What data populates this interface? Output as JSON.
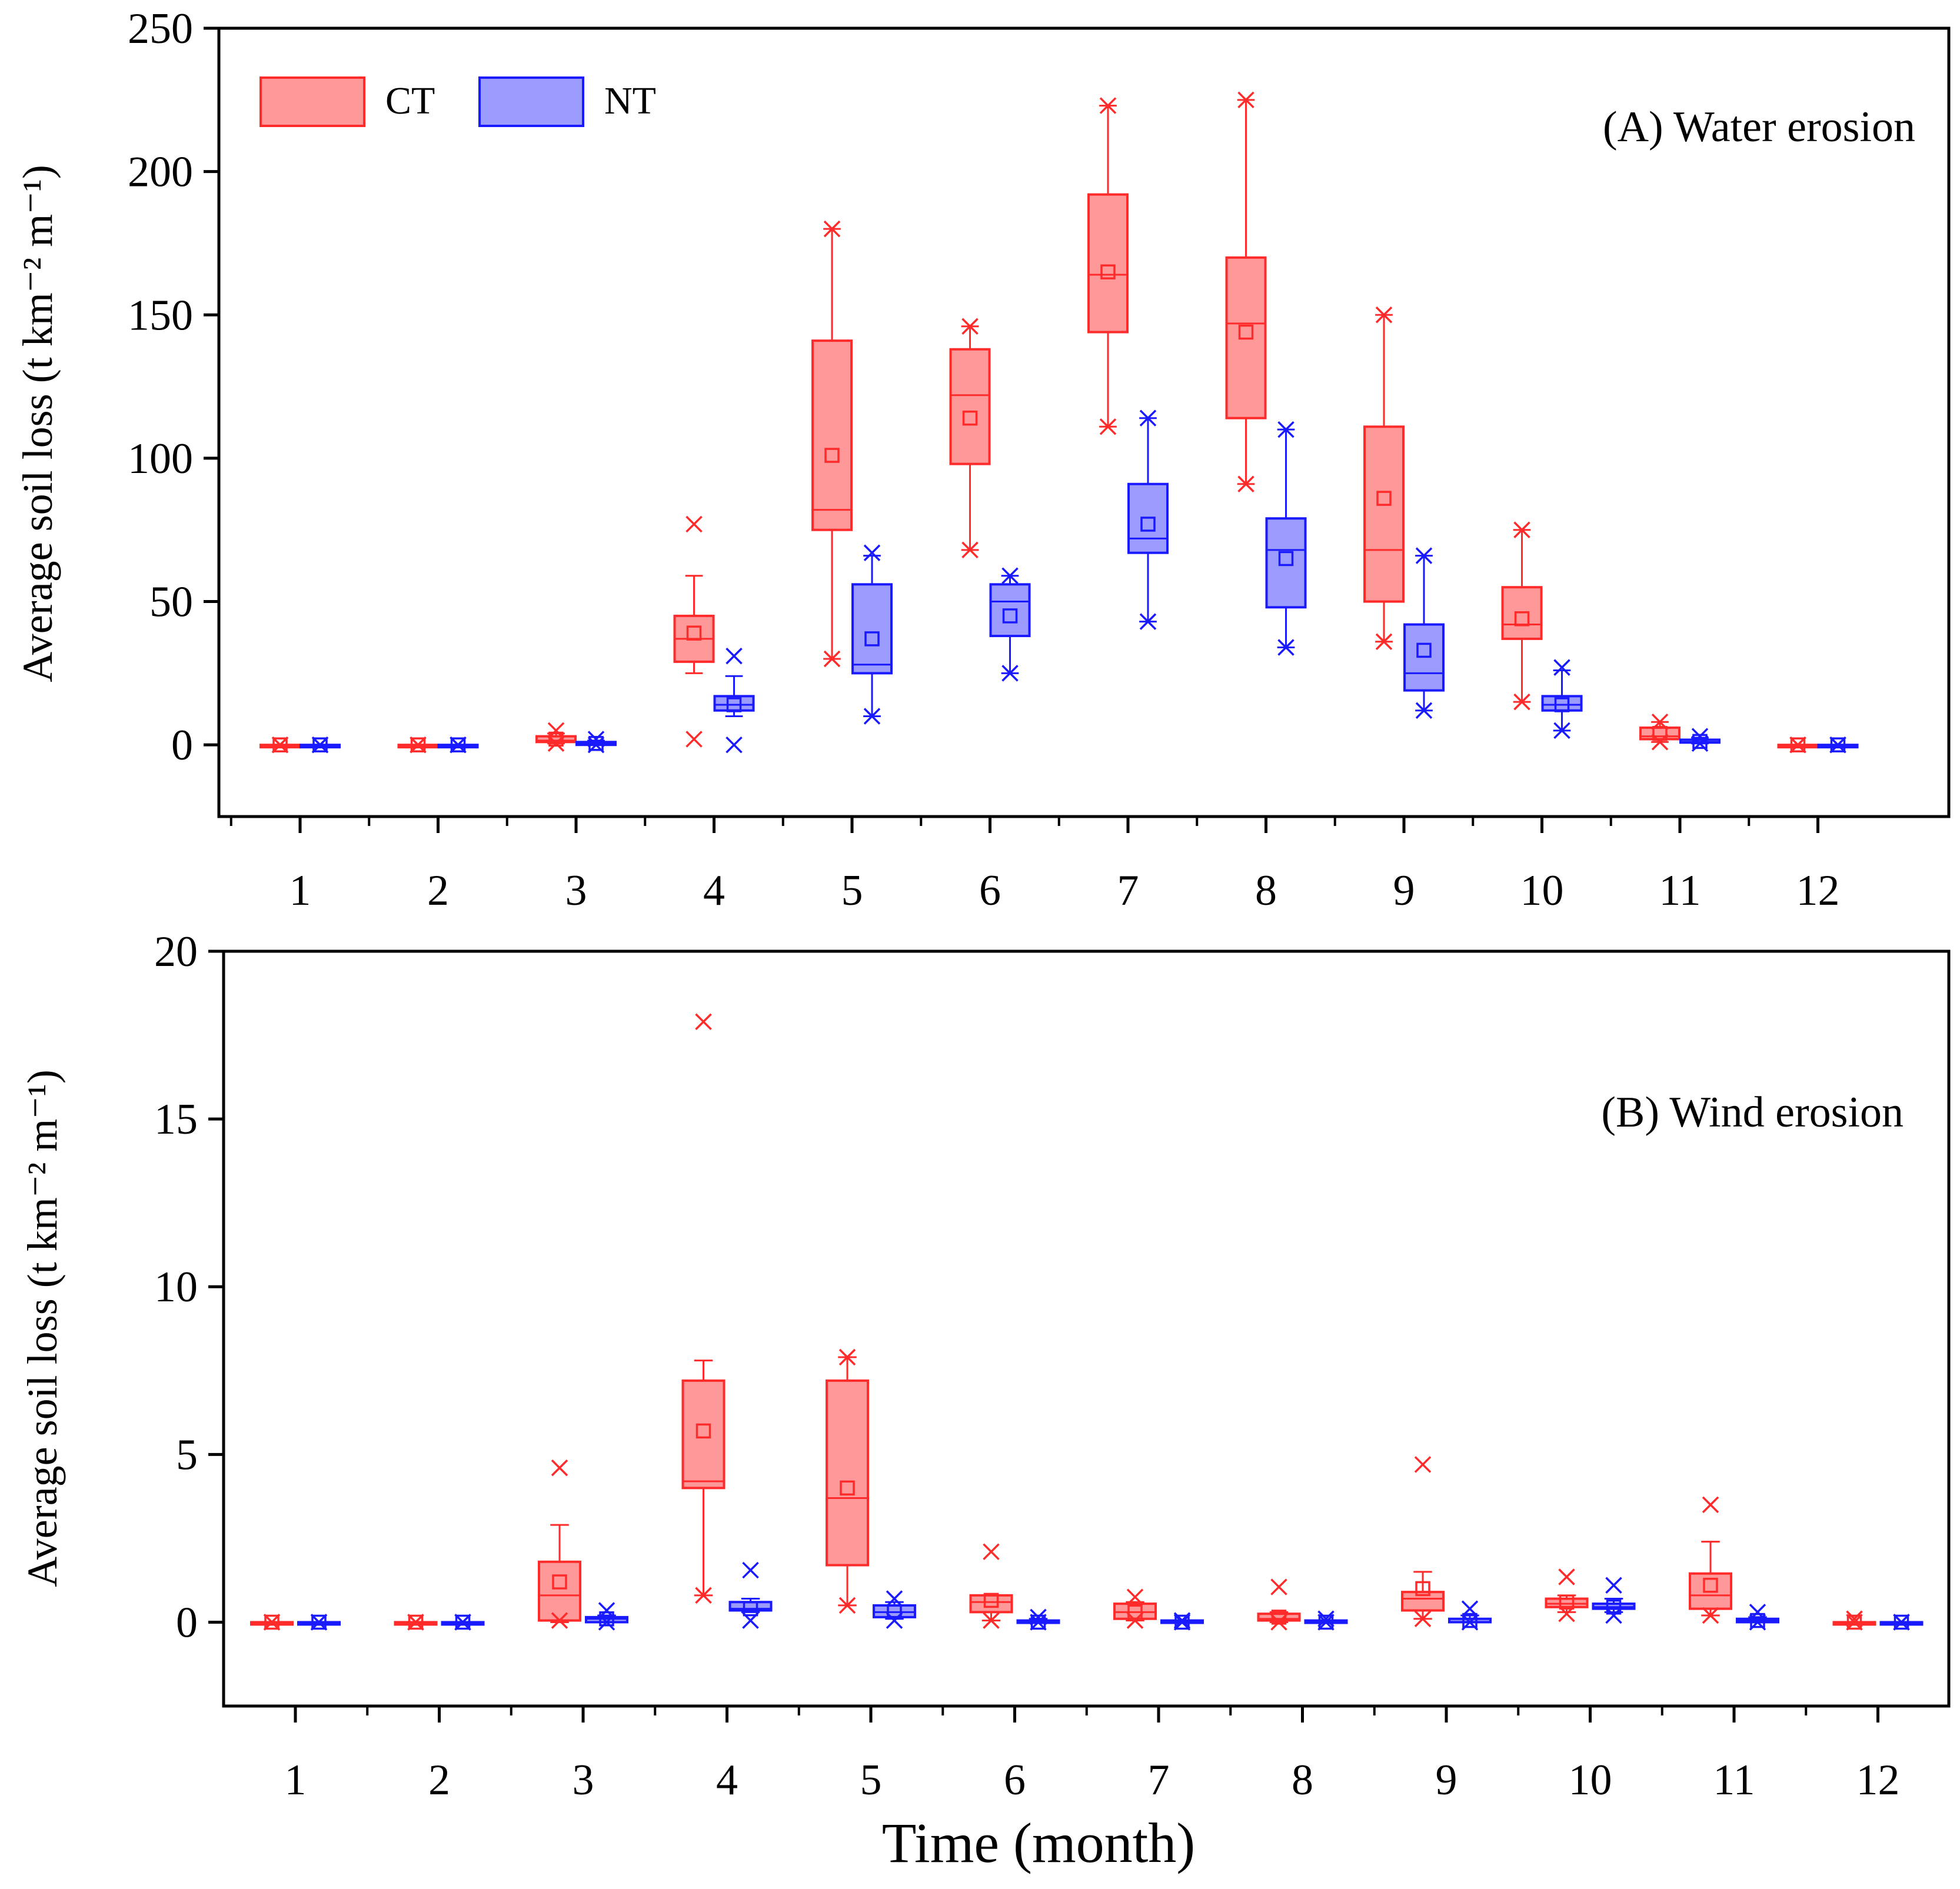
{
  "colors": {
    "CT_stroke": "#ff2a2a",
    "CT_fill": "#ff9999",
    "NT_stroke": "#1a1aff",
    "NT_fill": "#9c9cff",
    "axis": "#000000"
  },
  "xlabel": "Time (month)",
  "chart_data": [
    {
      "type": "box",
      "panel_label": "(A) Water erosion",
      "ylabel": "Average soil loss (t km⁻² m⁻¹)",
      "ylim": [
        -25,
        250
      ],
      "yticks": [
        0,
        50,
        100,
        150,
        200,
        250
      ],
      "categories": [
        "1",
        "2",
        "3",
        "4",
        "5",
        "6",
        "7",
        "8",
        "9",
        "10",
        "11",
        "12"
      ],
      "legend": {
        "placement": "top-left",
        "entries": [
          "CT",
          "NT"
        ]
      },
      "series": [
        {
          "name": "CT",
          "boxes": [
            {
              "min": 0,
              "q1": 0,
              "median": 0,
              "q3": 0,
              "max": 0,
              "mean": 0,
              "outliers": [
                0,
                0
              ]
            },
            {
              "min": 0,
              "q1": 0,
              "median": 0,
              "q3": 0,
              "max": 0,
              "mean": 0,
              "outliers": [
                0,
                0
              ]
            },
            {
              "min": 0.5,
              "q1": 1,
              "median": 1.5,
              "q3": 3,
              "max": 4,
              "mean": 2,
              "outliers": [
                0.5,
                5
              ]
            },
            {
              "min": 25,
              "q1": 29,
              "median": 37,
              "q3": 45,
              "max": 59,
              "mean": 39,
              "outliers": [
                2,
                77
              ]
            },
            {
              "min": 30,
              "q1": 75,
              "median": 82,
              "q3": 141,
              "max": 180,
              "mean": 101,
              "outliers": [
                30,
                180
              ]
            },
            {
              "min": 68,
              "q1": 98,
              "median": 122,
              "q3": 138,
              "max": 146,
              "mean": 114,
              "outliers": [
                68,
                146
              ]
            },
            {
              "min": 111,
              "q1": 144,
              "median": 164,
              "q3": 192,
              "max": 223,
              "mean": 165,
              "outliers": [
                111,
                223
              ]
            },
            {
              "min": 91,
              "q1": 114,
              "median": 147,
              "q3": 170,
              "max": 225,
              "mean": 144,
              "outliers": [
                91,
                225
              ]
            },
            {
              "min": 36,
              "q1": 50,
              "median": 68,
              "q3": 111,
              "max": 150,
              "mean": 86,
              "outliers": [
                36,
                150
              ]
            },
            {
              "min": 15,
              "q1": 37,
              "median": 42,
              "q3": 55,
              "max": 75,
              "mean": 44,
              "outliers": [
                15,
                75
              ]
            },
            {
              "min": 1,
              "q1": 2,
              "median": 3,
              "q3": 6,
              "max": 8,
              "mean": 4,
              "outliers": [
                1,
                8
              ]
            },
            {
              "min": 0,
              "q1": 0,
              "median": 0,
              "q3": 0,
              "max": 0,
              "mean": 0,
              "outliers": [
                0,
                0
              ]
            }
          ]
        },
        {
          "name": "NT",
          "boxes": [
            {
              "min": 0,
              "q1": 0,
              "median": 0,
              "q3": 0,
              "max": 0,
              "mean": 0,
              "outliers": [
                0,
                0
              ]
            },
            {
              "min": 0,
              "q1": 0,
              "median": 0,
              "q3": 0,
              "max": 0,
              "mean": 0,
              "outliers": [
                0,
                0
              ]
            },
            {
              "min": 0,
              "q1": 0,
              "median": 0.5,
              "q3": 1,
              "max": 1.5,
              "mean": 0.5,
              "outliers": [
                0,
                2
              ]
            },
            {
              "min": 10,
              "q1": 12,
              "median": 14,
              "q3": 17,
              "max": 24,
              "mean": 14,
              "outliers": [
                0,
                31
              ]
            },
            {
              "min": 10,
              "q1": 25,
              "median": 28,
              "q3": 56,
              "max": 66,
              "mean": 37,
              "outliers": [
                10,
                67
              ]
            },
            {
              "min": 25,
              "q1": 38,
              "median": 50,
              "q3": 56,
              "max": 59,
              "mean": 45,
              "outliers": [
                25,
                59
              ]
            },
            {
              "min": 43,
              "q1": 67,
              "median": 72,
              "q3": 91,
              "max": 114,
              "mean": 77,
              "outliers": [
                43,
                114
              ]
            },
            {
              "min": 34,
              "q1": 48,
              "median": 68,
              "q3": 79,
              "max": 110,
              "mean": 65,
              "outliers": [
                34,
                110
              ]
            },
            {
              "min": 12,
              "q1": 19,
              "median": 25,
              "q3": 42,
              "max": 66,
              "mean": 33,
              "outliers": [
                12,
                66
              ]
            },
            {
              "min": 5,
              "q1": 12,
              "median": 14,
              "q3": 17,
              "max": 26,
              "mean": 14,
              "outliers": [
                5,
                27
              ]
            },
            {
              "min": 0.5,
              "q1": 0.8,
              "median": 1,
              "q3": 1.8,
              "max": 2.5,
              "mean": 1.2,
              "outliers": [
                0.5,
                3
              ]
            },
            {
              "min": 0,
              "q1": 0,
              "median": 0,
              "q3": 0,
              "max": 0,
              "mean": 0,
              "outliers": [
                0,
                0
              ]
            }
          ]
        }
      ]
    },
    {
      "type": "box",
      "panel_label": "(B) Wind erosion",
      "ylabel": "Average soil loss (t km⁻² m⁻¹)",
      "ylim": [
        -2.5,
        20
      ],
      "yticks": [
        0,
        5,
        10,
        15,
        20
      ],
      "categories": [
        "1",
        "2",
        "3",
        "4",
        "5",
        "6",
        "7",
        "8",
        "9",
        "10",
        "11",
        "12"
      ],
      "series": [
        {
          "name": "CT",
          "boxes": [
            {
              "min": 0,
              "q1": 0,
              "median": 0,
              "q3": 0,
              "max": 0,
              "mean": 0,
              "outliers": [
                0,
                0
              ]
            },
            {
              "min": 0,
              "q1": 0,
              "median": 0,
              "q3": 0,
              "max": 0,
              "mean": 0,
              "outliers": [
                0,
                0
              ]
            },
            {
              "min": 0,
              "q1": 0.05,
              "median": 0.8,
              "q3": 1.8,
              "max": 2.9,
              "mean": 1.2,
              "outliers": [
                0.05,
                4.6
              ]
            },
            {
              "min": 0.8,
              "q1": 4.0,
              "median": 4.2,
              "q3": 7.2,
              "max": 7.8,
              "mean": 5.7,
              "outliers": [
                0.8,
                17.9
              ]
            },
            {
              "min": 0.5,
              "q1": 1.7,
              "median": 3.7,
              "q3": 7.2,
              "max": 7.9,
              "mean": 4.0,
              "outliers": [
                0.5,
                7.9
              ]
            },
            {
              "min": 0.05,
              "q1": 0.3,
              "median": 0.6,
              "q3": 0.8,
              "max": 0.8,
              "mean": 0.65,
              "outliers": [
                0.05,
                2.1
              ]
            },
            {
              "min": 0.05,
              "q1": 0.1,
              "median": 0.3,
              "q3": 0.55,
              "max": 0.6,
              "mean": 0.3,
              "outliers": [
                0.05,
                0.75
              ]
            },
            {
              "min": 0,
              "q1": 0.05,
              "median": 0.1,
              "q3": 0.25,
              "max": 0.3,
              "mean": 0.15,
              "outliers": [
                0,
                1.05
              ]
            },
            {
              "min": 0.1,
              "q1": 0.35,
              "median": 0.7,
              "q3": 0.9,
              "max": 1.5,
              "mean": 1.0,
              "outliers": [
                0.1,
                4.7
              ]
            },
            {
              "min": 0.3,
              "q1": 0.45,
              "median": 0.55,
              "q3": 0.7,
              "max": 0.8,
              "mean": 0.6,
              "outliers": [
                0.25,
                1.35
              ]
            },
            {
              "min": 0.2,
              "q1": 0.4,
              "median": 0.8,
              "q3": 1.45,
              "max": 2.4,
              "mean": 1.1,
              "outliers": [
                0.2,
                3.5
              ]
            },
            {
              "min": 0,
              "q1": 0,
              "median": 0,
              "q3": 0,
              "max": 0,
              "mean": 0,
              "outliers": [
                0,
                0.1
              ]
            }
          ]
        },
        {
          "name": "NT",
          "boxes": [
            {
              "min": 0,
              "q1": 0,
              "median": 0,
              "q3": 0,
              "max": 0,
              "mean": 0,
              "outliers": [
                0,
                0
              ]
            },
            {
              "min": 0,
              "q1": 0,
              "median": 0,
              "q3": 0,
              "max": 0,
              "mean": 0,
              "outliers": [
                0,
                0
              ]
            },
            {
              "min": 0,
              "q1": 0,
              "median": 0.1,
              "q3": 0.15,
              "max": 0.2,
              "mean": 0.1,
              "outliers": [
                0,
                0.35
              ]
            },
            {
              "min": 0.3,
              "q1": 0.35,
              "median": 0.4,
              "q3": 0.6,
              "max": 0.7,
              "mean": 0.4,
              "outliers": [
                0.05,
                1.55
              ]
            },
            {
              "min": 0.1,
              "q1": 0.15,
              "median": 0.3,
              "q3": 0.5,
              "max": 0.6,
              "mean": 0.3,
              "outliers": [
                0.05,
                0.7
              ]
            },
            {
              "min": 0,
              "q1": 0,
              "median": 0,
              "q3": 0.05,
              "max": 0.1,
              "mean": 0,
              "outliers": [
                0,
                0.15
              ]
            },
            {
              "min": 0,
              "q1": 0,
              "median": 0,
              "q3": 0.05,
              "max": 0.05,
              "mean": 0,
              "outliers": [
                0,
                0.05
              ]
            },
            {
              "min": 0,
              "q1": 0,
              "median": 0,
              "q3": 0.05,
              "max": 0.05,
              "mean": 0,
              "outliers": [
                0,
                0.1
              ]
            },
            {
              "min": 0,
              "q1": 0,
              "median": 0,
              "q3": 0.1,
              "max": 0.2,
              "mean": 0.05,
              "outliers": [
                0,
                0.4
              ]
            },
            {
              "min": 0.3,
              "q1": 0.4,
              "median": 0.45,
              "q3": 0.55,
              "max": 0.7,
              "mean": 0.45,
              "outliers": [
                0.2,
                1.1
              ]
            },
            {
              "min": 0,
              "q1": 0,
              "median": 0.05,
              "q3": 0.1,
              "max": 0.15,
              "mean": 0.05,
              "outliers": [
                0,
                0.3
              ]
            },
            {
              "min": 0,
              "q1": 0,
              "median": 0,
              "q3": 0,
              "max": 0,
              "mean": 0,
              "outliers": [
                0,
                0
              ]
            }
          ]
        }
      ]
    }
  ]
}
